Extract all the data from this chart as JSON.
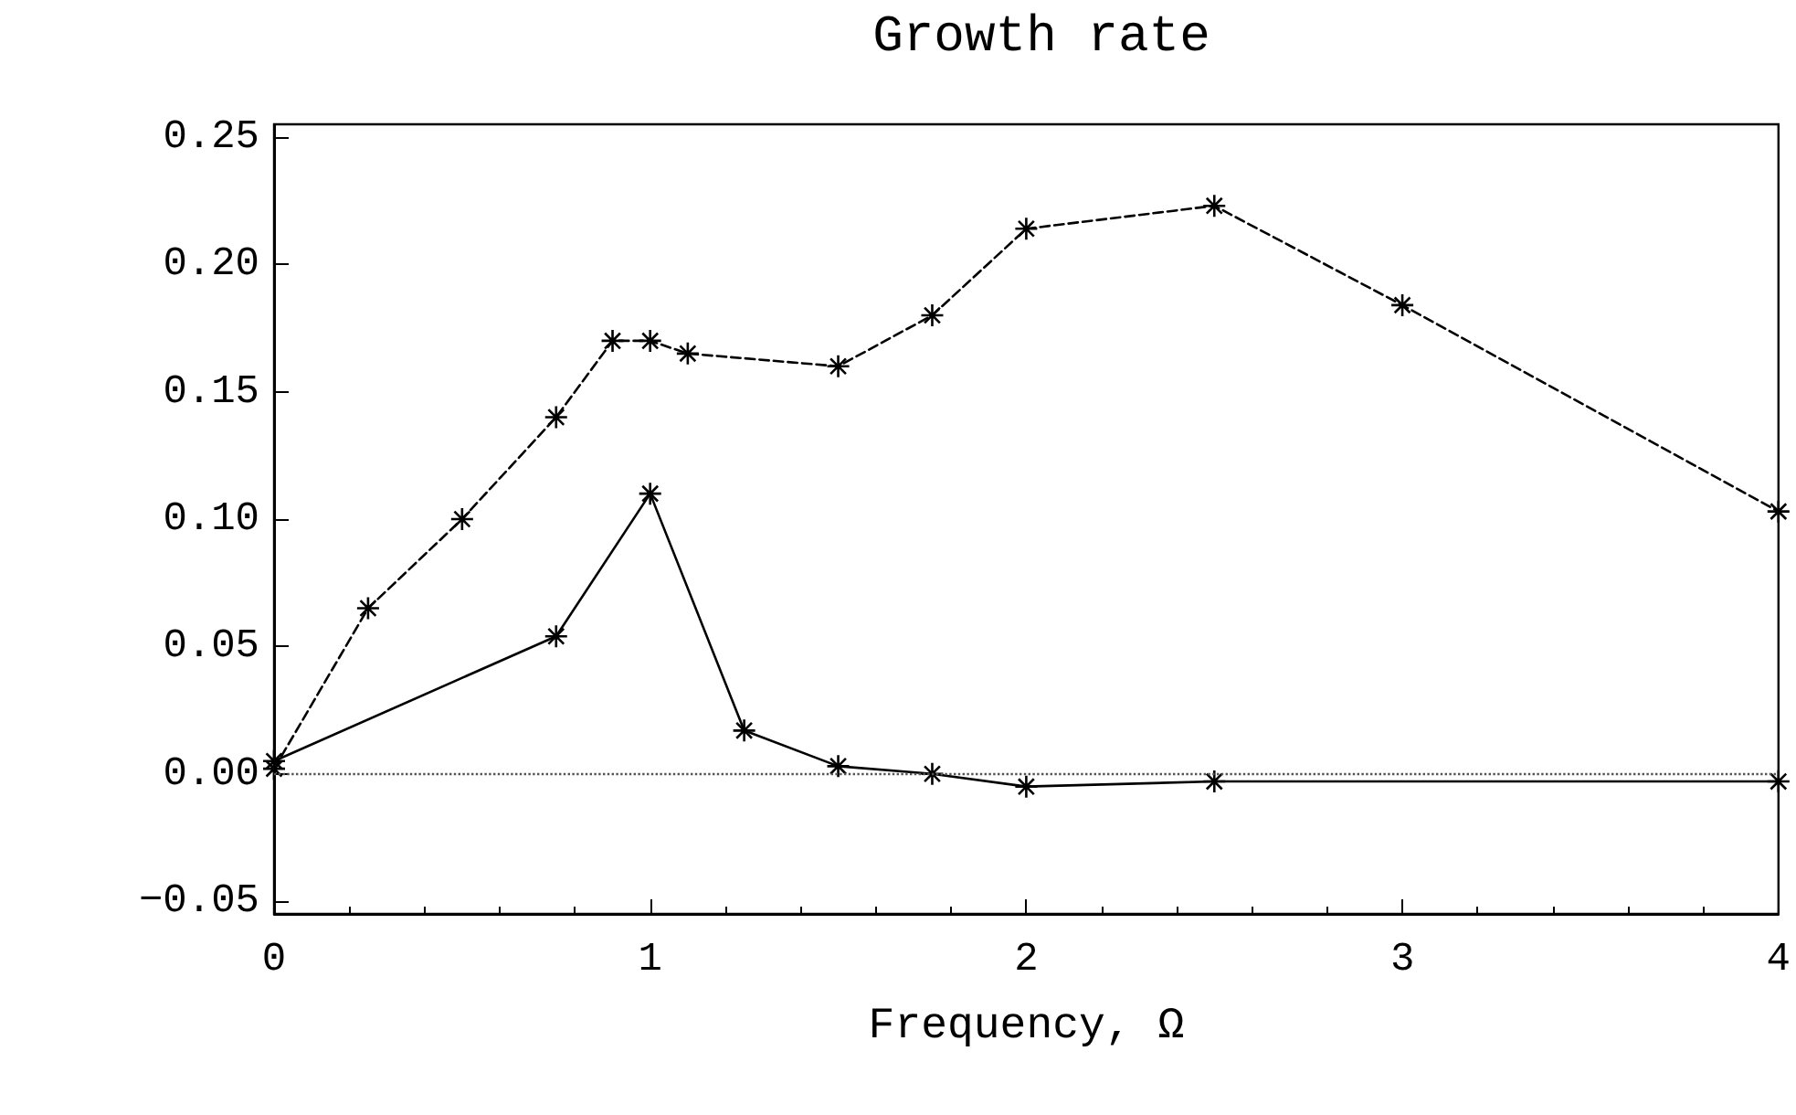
{
  "chart_data": {
    "type": "line",
    "title": "Growth rate",
    "xlabel": "Frequency, Ω",
    "series": [
      {
        "color": "#000000",
        "line_style": "dashed",
        "x": [
          0,
          0.25,
          0.5,
          0.75,
          0.9,
          1.0,
          1.1,
          1.5,
          1.75,
          2,
          2.5,
          3,
          4
        ],
        "values": [
          0.002,
          0.065,
          0.1,
          0.14,
          0.17,
          0.17,
          0.165,
          0.16,
          0.18,
          0.214,
          0.223,
          0.184,
          0.103
        ]
      },
      {
        "color": "#000000",
        "line_style": "solid",
        "x": [
          0,
          0.75,
          1,
          1.25,
          1.5,
          1.75,
          2,
          2.5,
          4
        ],
        "values": [
          0.005,
          0.054,
          0.11,
          0.017,
          0.003,
          0.0,
          -0.005,
          -0.003,
          -0.003
        ]
      }
    ],
    "marker": "cross",
    "xlim": [
      0,
      4
    ],
    "xticks": [
      0,
      1,
      2,
      3,
      4
    ],
    "ylim": [
      -0.055,
      0.255
    ],
    "yticks": [
      {
        "value": -0.05,
        "label": "−0.05"
      },
      {
        "value": 0,
        "label": "0.00"
      },
      {
        "value": 0.05,
        "label": "0.05"
      },
      {
        "value": 0.1,
        "label": "0.10"
      },
      {
        "value": 0.15,
        "label": "0.15"
      },
      {
        "value": 0.2,
        "label": "0.20"
      },
      {
        "value": 0.25,
        "label": "0.25"
      }
    ],
    "ref_lines": [
      {
        "axis": "y",
        "value": 0,
        "line_style": "dotted",
        "color": "#555555"
      }
    ]
  }
}
